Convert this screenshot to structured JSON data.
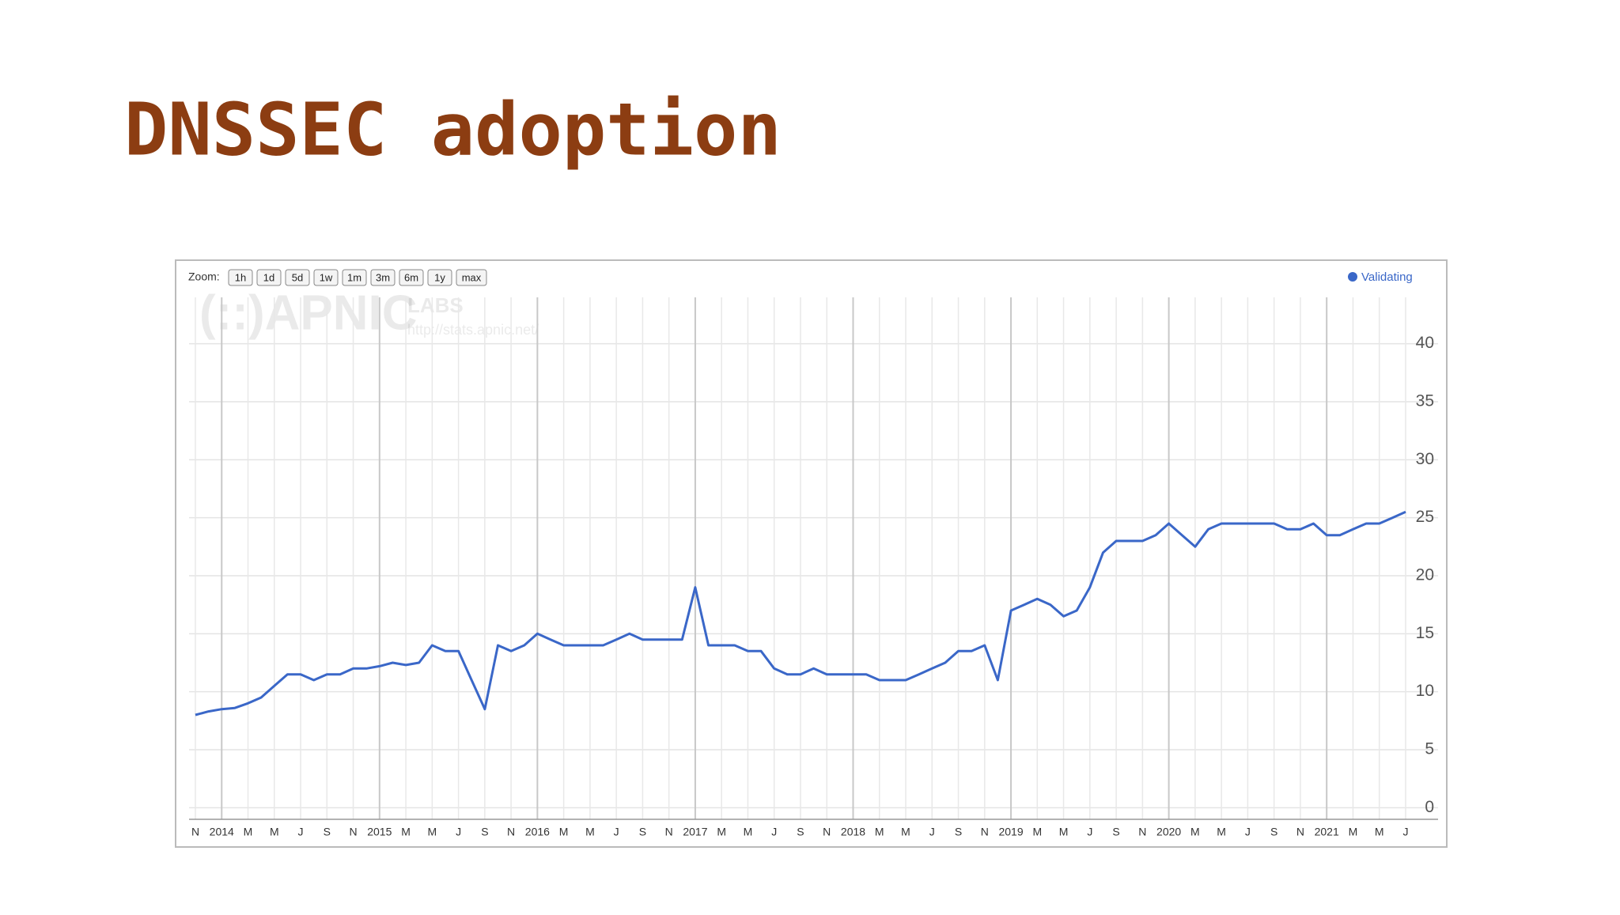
{
  "slide": {
    "title": "DNSSEC adoption"
  },
  "zoom": {
    "label": "Zoom:",
    "buttons": [
      "1h",
      "1d",
      "5d",
      "1w",
      "1m",
      "3m",
      "6m",
      "1y",
      "max"
    ]
  },
  "watermark": [
    "(::)APNIC",
    "LABS",
    "http://stats.apnic.net/"
  ],
  "chart_data": {
    "type": "line",
    "categories": [
      "N",
      null,
      "2014",
      null,
      "M",
      null,
      "M",
      null,
      "J",
      null,
      "S",
      null,
      "N",
      null,
      "2015",
      null,
      "M",
      null,
      "M",
      null,
      "J",
      null,
      "S",
      null,
      "N",
      null,
      "2016",
      null,
      "M",
      null,
      "M",
      null,
      "J",
      null,
      "S",
      null,
      "N",
      null,
      "2017",
      null,
      "M",
      null,
      "M",
      null,
      "J",
      null,
      "S",
      null,
      "N",
      null,
      "2018",
      null,
      "M",
      null,
      "M",
      null,
      "J",
      null,
      "S",
      null,
      "N",
      null,
      "2019",
      null,
      "M",
      null,
      "M",
      null,
      "J",
      null,
      "S",
      null,
      "N",
      null,
      "2020",
      null,
      "M",
      null,
      "M",
      null,
      "J",
      null,
      "S",
      null,
      "N",
      null,
      "2021",
      null,
      "M",
      null,
      "M",
      null,
      "J"
    ],
    "series": [
      {
        "name": "Validating",
        "color": "#3a67c8",
        "values": [
          8,
          8.3,
          8.5,
          8.6,
          9,
          9.5,
          10.5,
          11.5,
          11.5,
          11,
          11.5,
          11.5,
          12,
          12,
          12.2,
          12.5,
          12.3,
          12.5,
          14,
          13.5,
          13.5,
          11,
          8.5,
          14,
          13.5,
          14,
          15,
          14.5,
          14,
          14,
          14,
          14,
          14.5,
          15,
          14.5,
          14.5,
          14.5,
          14.5,
          19,
          14,
          14,
          14,
          13.5,
          13.5,
          12,
          11.5,
          11.5,
          12,
          11.5,
          11.5,
          11.5,
          11.5,
          11,
          11,
          11,
          11.5,
          12,
          12.5,
          13.5,
          13.5,
          14,
          11,
          17,
          17.5,
          18,
          17.5,
          16.5,
          17,
          19,
          22,
          23,
          23,
          23,
          23.5,
          24.5,
          23.5,
          22.5,
          24,
          24.5,
          24.5,
          24.5,
          24.5,
          24.5,
          24,
          24,
          24.5,
          23.5,
          23.5,
          24,
          24.5,
          24.5,
          25,
          25.5
        ]
      }
    ],
    "ylim": [
      -1,
      44
    ],
    "yticks": [
      0,
      5,
      10,
      15,
      20,
      25,
      30,
      35,
      40
    ],
    "grid": true,
    "legend": "top-right"
  }
}
